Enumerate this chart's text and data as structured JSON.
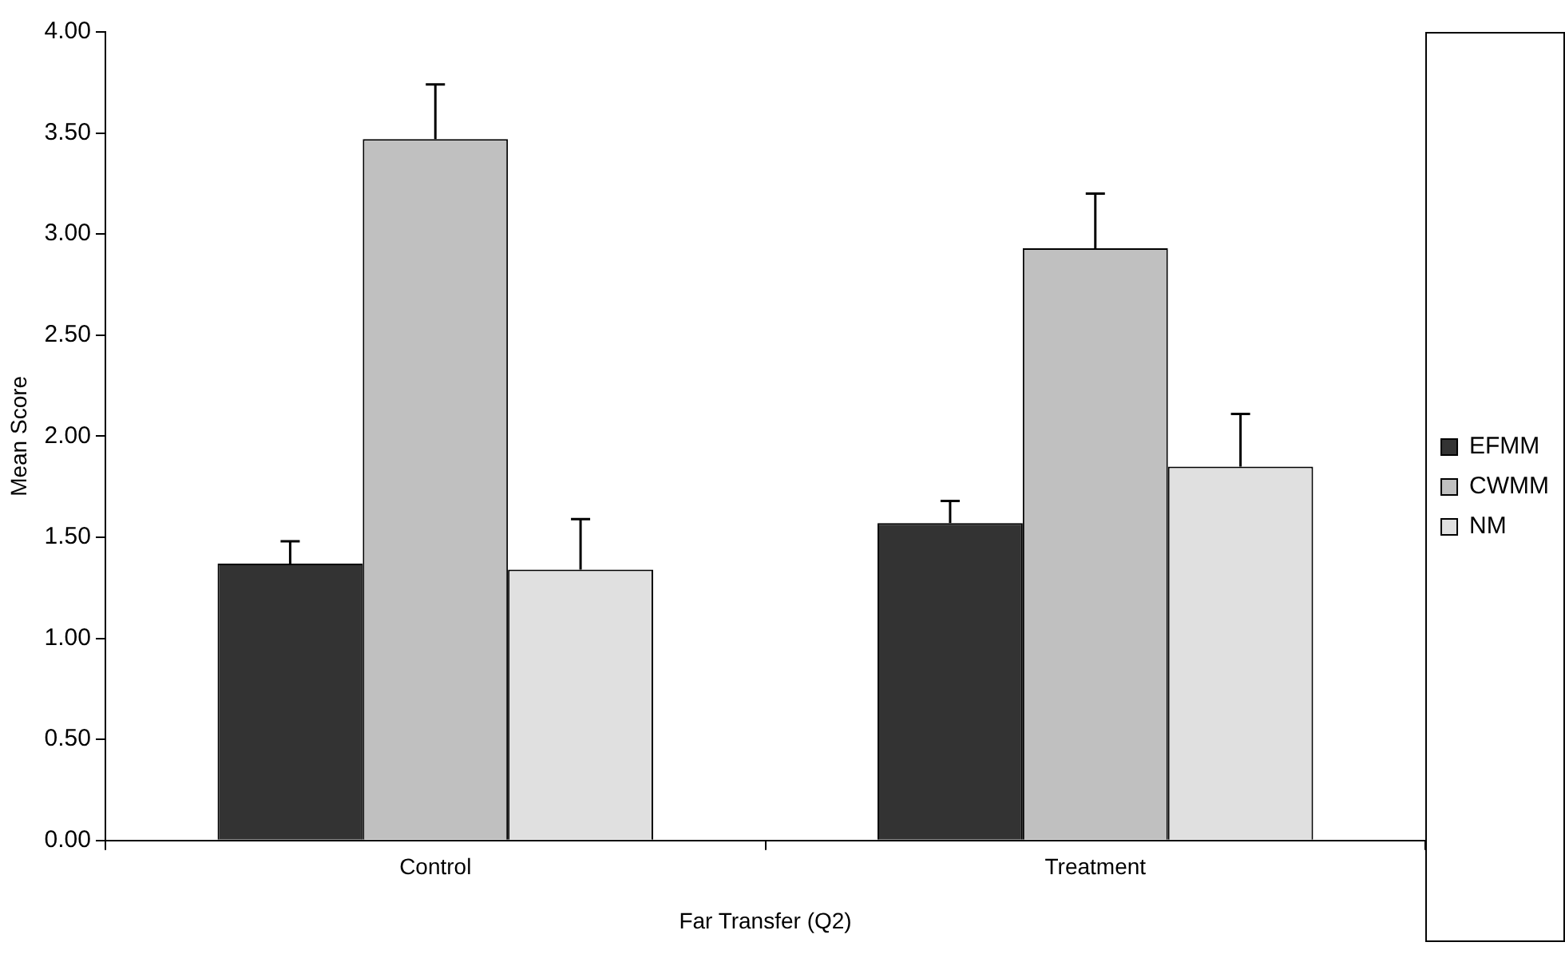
{
  "chart_data": {
    "type": "bar",
    "xlabel": "Far Transfer (Q2)",
    "ylabel": "Mean Score",
    "categories": [
      "Control",
      "Treatment"
    ],
    "series": [
      {
        "name": "EFMM",
        "color": "#333333",
        "values": [
          1.37,
          1.57
        ],
        "errors": [
          0.11,
          0.11
        ]
      },
      {
        "name": "CWMM",
        "color": "#c0c0c0",
        "values": [
          3.47,
          2.93
        ],
        "errors": [
          0.27,
          0.27
        ]
      },
      {
        "name": "NM",
        "color": "#e0e0e0",
        "values": [
          1.34,
          1.85
        ],
        "errors": [
          0.25,
          0.26
        ]
      }
    ],
    "ylim": [
      0,
      4
    ],
    "yticks": [
      {
        "value": 0,
        "label": "0.00"
      },
      {
        "value": 0.5,
        "label": "0.50"
      },
      {
        "value": 1,
        "label": "1.00"
      },
      {
        "value": 1.5,
        "label": "1.50"
      },
      {
        "value": 2,
        "label": "2.00"
      },
      {
        "value": 2.5,
        "label": "2.50"
      },
      {
        "value": 3,
        "label": "3.00"
      },
      {
        "value": 3.5,
        "label": "3.50"
      },
      {
        "value": 4,
        "label": "4.00"
      }
    ],
    "grid": false,
    "legend": "right"
  }
}
